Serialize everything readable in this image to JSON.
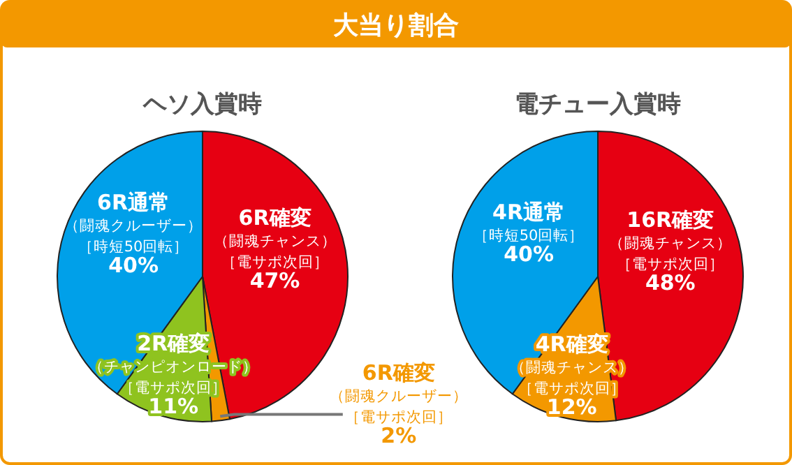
{
  "chart_data": [
    {
      "type": "other",
      "title": "大当り割合"
    },
    {
      "type": "pie",
      "title": "ヘソ入賞時",
      "categories": [
        "6R確変（闘魂チャンス）［電サポ次回］",
        "6R確変（闘魂クルーザー）［電サポ次回］",
        "2R確変（チャンピオンロード）［電サポ次回］",
        "6R通常（闘魂クルーザー）［時短50回転］"
      ],
      "values": [
        47,
        2,
        11,
        40
      ],
      "value_labels": [
        "47%",
        "2%",
        "11%",
        "40%"
      ],
      "colors": [
        "#e60012",
        "#f39800",
        "#8fc31f",
        "#00a0e9"
      ]
    },
    {
      "type": "pie",
      "title": "電チュー入賞時",
      "categories": [
        "16R確変（闘魂チャンス）［電サポ次回］",
        "4R確変（闘魂チャンス）［電サポ次回］",
        "4R通常［時短50回転］"
      ],
      "values": [
        48,
        12,
        40
      ],
      "value_labels": [
        "48%",
        "12%",
        "40%"
      ],
      "colors": [
        "#e60012",
        "#f39800",
        "#00a0e9"
      ]
    }
  ]
}
